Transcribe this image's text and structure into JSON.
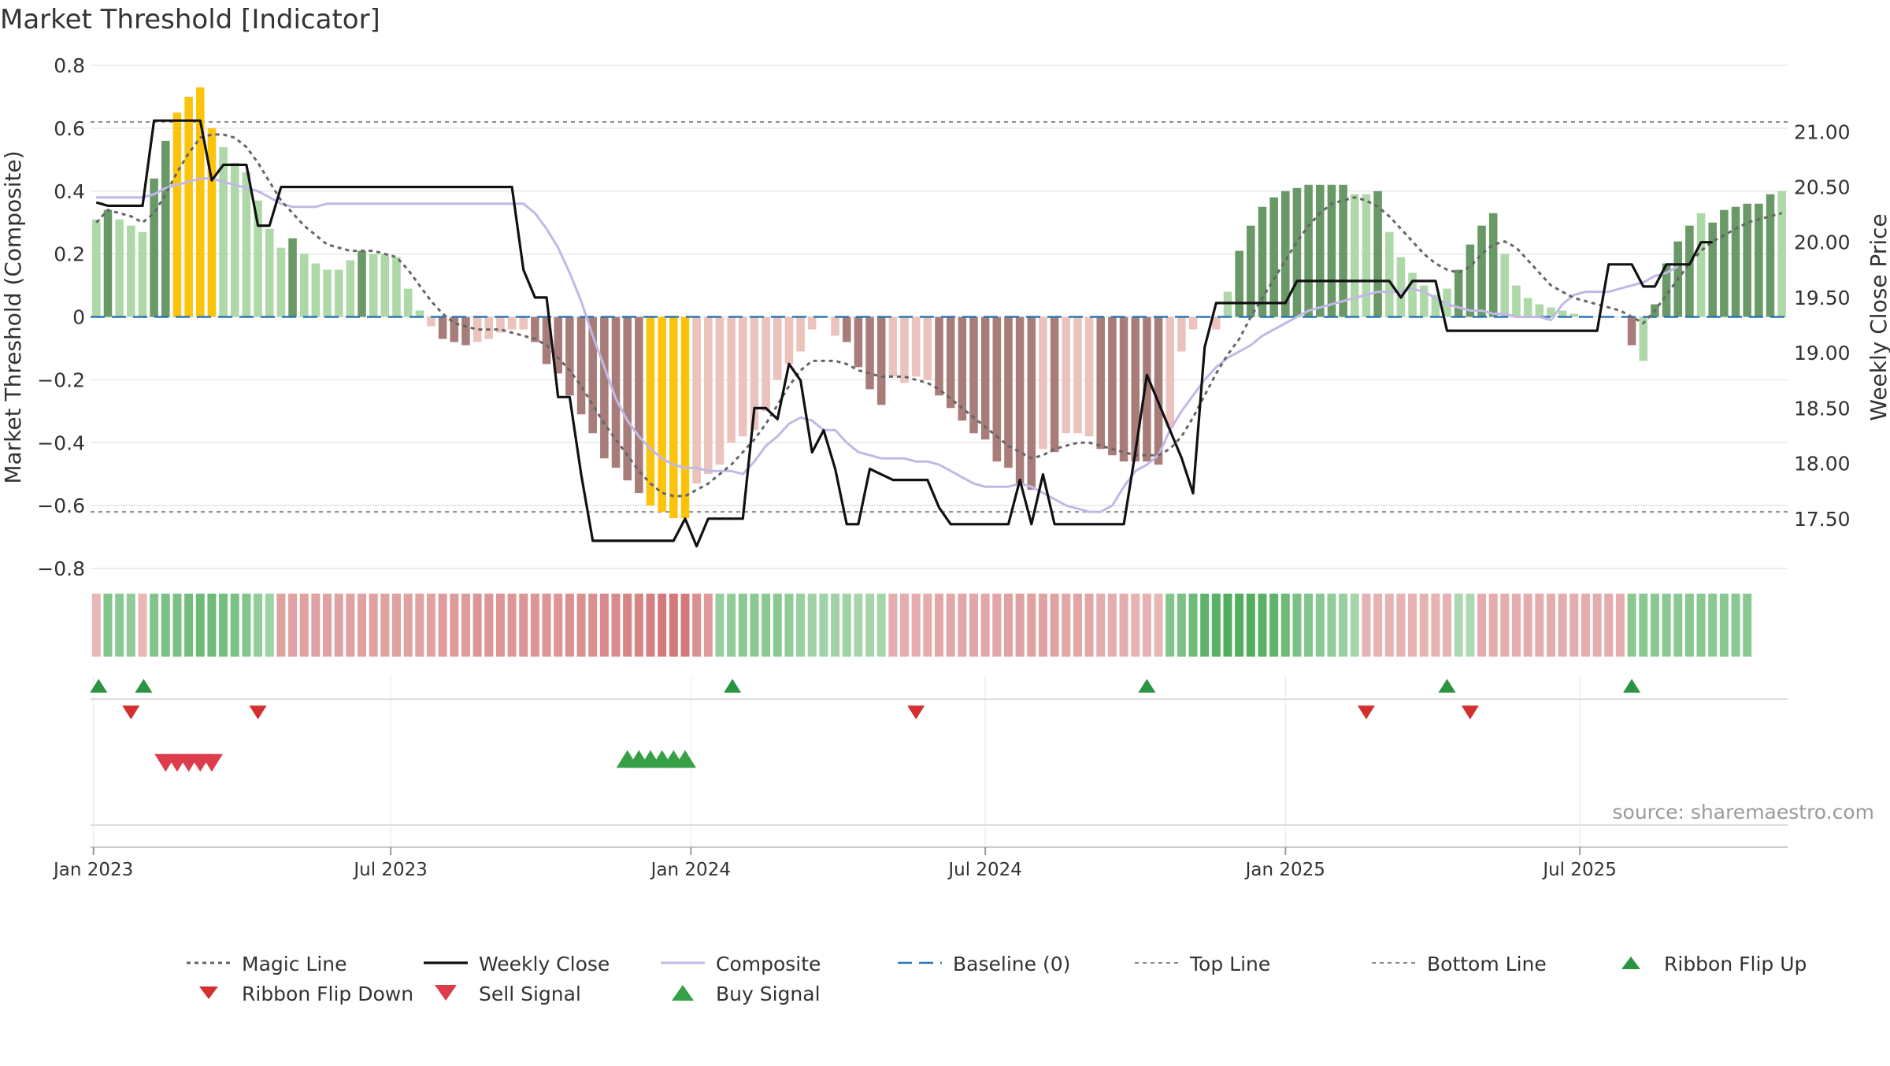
{
  "chart_data": {
    "type": "bar",
    "title": "Market Threshold [Indicator]",
    "ylabel": "Market Threshold (Composite)",
    "y2label": "Weekly Close Price",
    "source": "source: sharemaestro.com",
    "ylim": [
      -0.8,
      0.8
    ],
    "y2lim": [
      17.05,
      21.6
    ],
    "ytick_labels": [
      "0.8",
      "0.6",
      "0.4",
      "0.2",
      "0",
      "−0.2",
      "−0.4",
      "−0.6",
      "−0.8"
    ],
    "ytick_values": [
      0.8,
      0.6,
      0.4,
      0.2,
      0,
      -0.2,
      -0.4,
      -0.6,
      -0.8
    ],
    "y2tick_labels": [
      "21.00",
      "20.50",
      "20.00",
      "19.50",
      "19.00",
      "18.50",
      "18.00",
      "17.50"
    ],
    "y2tick_values": [
      21.0,
      20.5,
      20.0,
      19.5,
      19.0,
      18.5,
      18.0,
      17.5
    ],
    "xtick_labels": [
      "Jan 2023",
      "Jul 2023",
      "Jan 2024",
      "Jul 2024",
      "Jan 2025",
      "Jul 2025"
    ],
    "xtick_weeks": [
      0.25,
      26,
      52,
      77.5,
      103.5,
      129
    ],
    "top_line": 0.62,
    "bottom_line": -0.62,
    "grid": true,
    "legend_position": "bottom",
    "legend": [
      {
        "key": "magic",
        "label": "Magic Line"
      },
      {
        "key": "close",
        "label": "Weekly Close"
      },
      {
        "key": "composite",
        "label": "Composite"
      },
      {
        "key": "baseline",
        "label": "Baseline (0)"
      },
      {
        "key": "top",
        "label": "Top Line"
      },
      {
        "key": "bottom",
        "label": "Bottom Line"
      },
      {
        "key": "flipup",
        "label": "Ribbon Flip Up"
      },
      {
        "key": "flipdown",
        "label": "Ribbon Flip Down"
      },
      {
        "key": "sell",
        "label": "Sell Signal"
      },
      {
        "key": "buy",
        "label": "Buy Signal"
      }
    ],
    "colors": {
      "pos_dark": "#689966",
      "pos_light": "#aed8a8",
      "neg_dark": "#a87d79",
      "neg_light": "#ecc2bd",
      "extreme": "#fcc30c",
      "magic": "#666666",
      "close": "#111111",
      "composite": "#c2b8e6",
      "baseline": "#2c77b2",
      "thresholds": "#888888",
      "flip_up": "#2a9442",
      "flip_down": "#d32f2f",
      "sell": "#dc3c4b",
      "buy": "#36a047",
      "grid": "#e8e8e8"
    },
    "bar_values": [
      0.31,
      0.34,
      0.31,
      0.29,
      0.27,
      0.44,
      0.56,
      0.65,
      0.7,
      0.73,
      0.6,
      0.54,
      0.49,
      0.46,
      0.37,
      0.28,
      0.22,
      0.25,
      0.2,
      0.17,
      0.15,
      0.15,
      0.18,
      0.21,
      0.2,
      0.2,
      0.19,
      0.09,
      0.02,
      -0.03,
      -0.07,
      -0.08,
      -0.09,
      -0.08,
      -0.07,
      -0.05,
      -0.04,
      -0.04,
      -0.08,
      -0.15,
      -0.18,
      -0.25,
      -0.31,
      -0.37,
      -0.45,
      -0.48,
      -0.52,
      -0.56,
      -0.6,
      -0.62,
      -0.64,
      -0.64,
      -0.53,
      -0.5,
      -0.47,
      -0.4,
      -0.38,
      -0.36,
      -0.3,
      -0.2,
      -0.15,
      -0.11,
      -0.04,
      0,
      -0.06,
      -0.08,
      -0.16,
      -0.23,
      -0.28,
      -0.19,
      -0.21,
      -0.19,
      -0.2,
      -0.25,
      -0.29,
      -0.33,
      -0.37,
      -0.39,
      -0.46,
      -0.48,
      -0.53,
      -0.55,
      -0.42,
      -0.43,
      -0.37,
      -0.37,
      -0.38,
      -0.42,
      -0.44,
      -0.46,
      -0.46,
      -0.46,
      -0.47,
      -0.35,
      -0.11,
      -0.04,
      0,
      -0.04,
      0.08,
      0.21,
      0.29,
      0.35,
      0.38,
      0.4,
      0.41,
      0.42,
      0.42,
      0.42,
      0.42,
      0.39,
      0.39,
      0.4,
      0.27,
      0.19,
      0.14,
      0.1,
      0.07,
      0.09,
      0.15,
      0.23,
      0.29,
      0.33,
      0.2,
      0.1,
      0.06,
      0.04,
      0.03,
      0.02,
      0.01,
      0.0,
      0.0,
      0.0,
      0.0,
      -0.09,
      -0.14,
      0.04,
      0.17,
      0.24,
      0.29,
      0.33,
      0.3,
      0.34,
      0.35,
      0.36,
      0.36,
      0.39,
      0.4
    ],
    "bar_style": [
      "pl",
      "pd",
      "pl",
      "pl",
      "pl",
      "pd",
      "pd",
      "ex",
      "ex",
      "ex",
      "ex",
      "pl",
      "pl",
      "pl",
      "pl",
      "pl",
      "pl",
      "pd",
      "pl",
      "pl",
      "pl",
      "pl",
      "pl",
      "pd",
      "pl",
      "pl",
      "pl",
      "pl",
      "pl",
      "nl",
      "nd",
      "nd",
      "nd",
      "nl",
      "nl",
      "nl",
      "nl",
      "nl",
      "nd",
      "nd",
      "nd",
      "nd",
      "nd",
      "nd",
      "nd",
      "nd",
      "nd",
      "nd",
      "ex",
      "ex",
      "ex",
      "ex",
      "nl",
      "nl",
      "nl",
      "nl",
      "nl",
      "nl",
      "nl",
      "nl",
      "nl",
      "nl",
      "nl",
      "nl",
      "nl",
      "nd",
      "nd",
      "nd",
      "nd",
      "nl",
      "nl",
      "nl",
      "nl",
      "nd",
      "nd",
      "nd",
      "nd",
      "nd",
      "nd",
      "nd",
      "nd",
      "nd",
      "nl",
      "nd",
      "nl",
      "nl",
      "nl",
      "nd",
      "nd",
      "nd",
      "nd",
      "nd",
      "nd",
      "nl",
      "nl",
      "nl",
      "nl",
      "nl",
      "pl",
      "pd",
      "pd",
      "pd",
      "pd",
      "pd",
      "pd",
      "pd",
      "pd",
      "pd",
      "pd",
      "pl",
      "pl",
      "pd",
      "pl",
      "pl",
      "pl",
      "pl",
      "pl",
      "pl",
      "pd",
      "pd",
      "pd",
      "pd",
      "pl",
      "pl",
      "pl",
      "pl",
      "pl",
      "pl",
      "pl",
      "pl",
      "pl",
      "pl",
      "nl",
      "nd",
      "pl",
      "pd",
      "pd",
      "pd",
      "pd",
      "pl",
      "pd",
      "pd",
      "pd",
      "pd",
      "pd",
      "pd"
    ],
    "magic_line": [
      0.3,
      0.34,
      0.33,
      0.32,
      0.3,
      0.33,
      0.39,
      0.46,
      0.52,
      0.57,
      0.58,
      0.58,
      0.57,
      0.54,
      0.49,
      0.43,
      0.37,
      0.33,
      0.29,
      0.26,
      0.23,
      0.22,
      0.21,
      0.21,
      0.21,
      0.2,
      0.19,
      0.15,
      0.1,
      0.05,
      0.01,
      -0.02,
      -0.03,
      -0.04,
      -0.04,
      -0.04,
      -0.05,
      -0.06,
      -0.07,
      -0.09,
      -0.13,
      -0.17,
      -0.22,
      -0.28,
      -0.34,
      -0.39,
      -0.44,
      -0.49,
      -0.53,
      -0.56,
      -0.57,
      -0.57,
      -0.55,
      -0.53,
      -0.5,
      -0.47,
      -0.43,
      -0.39,
      -0.34,
      -0.28,
      -0.22,
      -0.17,
      -0.14,
      -0.14,
      -0.14,
      -0.15,
      -0.17,
      -0.18,
      -0.19,
      -0.19,
      -0.19,
      -0.2,
      -0.21,
      -0.23,
      -0.26,
      -0.29,
      -0.32,
      -0.35,
      -0.38,
      -0.41,
      -0.43,
      -0.45,
      -0.44,
      -0.42,
      -0.41,
      -0.4,
      -0.4,
      -0.41,
      -0.42,
      -0.43,
      -0.44,
      -0.44,
      -0.44,
      -0.42,
      -0.38,
      -0.32,
      -0.25,
      -0.18,
      -0.12,
      -0.07,
      0,
      0.06,
      0.12,
      0.18,
      0.24,
      0.29,
      0.33,
      0.36,
      0.37,
      0.38,
      0.37,
      0.35,
      0.32,
      0.28,
      0.24,
      0.2,
      0.17,
      0.15,
      0.14,
      0.16,
      0.2,
      0.23,
      0.24,
      0.22,
      0.18,
      0.14,
      0.1,
      0.08,
      0.06,
      0.05,
      0.04,
      0.03,
      0.02,
      0.0,
      -0.02,
      0.02,
      0.07,
      0.12,
      0.17,
      0.21,
      0.24,
      0.26,
      0.28,
      0.3,
      0.31,
      0.32,
      0.33
    ],
    "composite_line": [
      0.38,
      0.38,
      0.38,
      0.38,
      0.38,
      0.39,
      0.41,
      0.42,
      0.43,
      0.44,
      0.44,
      0.43,
      0.42,
      0.41,
      0.4,
      0.38,
      0.36,
      0.35,
      0.35,
      0.35,
      0.36,
      0.36,
      0.36,
      0.36,
      0.36,
      0.36,
      0.36,
      0.36,
      0.36,
      0.36,
      0.36,
      0.36,
      0.36,
      0.36,
      0.36,
      0.36,
      0.36,
      0.36,
      0.33,
      0.28,
      0.22,
      0.14,
      0.05,
      -0.06,
      -0.16,
      -0.26,
      -0.33,
      -0.38,
      -0.42,
      -0.45,
      -0.47,
      -0.48,
      -0.48,
      -0.49,
      -0.49,
      -0.49,
      -0.5,
      -0.46,
      -0.41,
      -0.38,
      -0.34,
      -0.32,
      -0.33,
      -0.36,
      -0.36,
      -0.4,
      -0.43,
      -0.44,
      -0.45,
      -0.45,
      -0.45,
      -0.46,
      -0.46,
      -0.47,
      -0.49,
      -0.51,
      -0.53,
      -0.54,
      -0.54,
      -0.54,
      -0.53,
      -0.54,
      -0.56,
      -0.58,
      -0.6,
      -0.61,
      -0.62,
      -0.62,
      -0.6,
      -0.54,
      -0.49,
      -0.47,
      -0.44,
      -0.36,
      -0.3,
      -0.25,
      -0.2,
      -0.16,
      -0.13,
      -0.11,
      -0.09,
      -0.06,
      -0.04,
      -0.02,
      0,
      0.02,
      0.03,
      0.04,
      0.05,
      0.06,
      0.07,
      0.08,
      0.08,
      0.08,
      0.09,
      0.08,
      0.06,
      0.04,
      0.03,
      0.02,
      0.02,
      0.01,
      0.01,
      0.0,
      0.0,
      0.0,
      -0.01,
      0.04,
      0.07,
      0.08,
      0.08,
      0.08,
      0.09,
      0.1,
      0.11,
      0.13,
      0.14,
      0.16
    ],
    "weekly_close": [
      20.36,
      20.33,
      20.33,
      20.33,
      20.33,
      21.1,
      21.1,
      21.1,
      21.1,
      21.1,
      20.56,
      20.7,
      20.7,
      20.7,
      20.15,
      20.15,
      20.5,
      20.5,
      20.5,
      20.5,
      20.5,
      20.5,
      20.5,
      20.5,
      20.5,
      20.5,
      20.5,
      20.5,
      20.5,
      20.5,
      20.5,
      20.5,
      20.5,
      20.5,
      20.5,
      20.5,
      20.5,
      19.75,
      19.5,
      19.5,
      18.6,
      18.6,
      17.9,
      17.3,
      17.3,
      17.3,
      17.3,
      17.3,
      17.3,
      17.3,
      17.3,
      17.5,
      17.25,
      17.5,
      17.5,
      17.5,
      17.5,
      18.5,
      18.5,
      18.4,
      18.9,
      18.75,
      18.1,
      18.3,
      17.95,
      17.45,
      17.45,
      17.95,
      17.9,
      17.85,
      17.85,
      17.85,
      17.85,
      17.6,
      17.45,
      17.45,
      17.45,
      17.45,
      17.45,
      17.45,
      17.85,
      17.45,
      17.9,
      17.45,
      17.45,
      17.45,
      17.45,
      17.45,
      17.45,
      17.45,
      18.1,
      18.8,
      18.55,
      18.3,
      18.05,
      17.73,
      19.05,
      19.45,
      19.45,
      19.45,
      19.45,
      19.45,
      19.45,
      19.45,
      19.65,
      19.65,
      19.65,
      19.65,
      19.65,
      19.65,
      19.65,
      19.65,
      19.65,
      19.5,
      19.65,
      19.65,
      19.65,
      19.2,
      19.2,
      19.2,
      19.2,
      19.2,
      19.2,
      19.2,
      19.2,
      19.2,
      19.2,
      19.2,
      19.2,
      19.2,
      19.2,
      19.8,
      19.8,
      19.8,
      19.6,
      19.6,
      19.8,
      19.8,
      19.8,
      20.0,
      20.0
    ],
    "ribbon": [
      -0.3,
      0.55,
      0.5,
      0.45,
      -0.3,
      0.55,
      0.6,
      0.6,
      0.65,
      0.7,
      0.7,
      0.65,
      0.6,
      0.55,
      0.45,
      0.35,
      -0.5,
      -0.5,
      -0.5,
      -0.5,
      -0.5,
      -0.5,
      -0.5,
      -0.5,
      -0.5,
      -0.5,
      -0.5,
      -0.5,
      -0.5,
      -0.5,
      -0.55,
      -0.55,
      -0.55,
      -0.6,
      -0.6,
      -0.6,
      -0.6,
      -0.6,
      -0.6,
      -0.6,
      -0.6,
      -0.65,
      -0.65,
      -0.65,
      -0.7,
      -0.7,
      -0.75,
      -0.75,
      -0.8,
      -0.85,
      -0.85,
      -0.85,
      -0.65,
      -0.55,
      0.4,
      0.45,
      0.5,
      0.5,
      0.5,
      0.5,
      0.45,
      0.4,
      0.35,
      0.35,
      0.35,
      0.35,
      0.3,
      0.3,
      0.3,
      -0.4,
      -0.4,
      -0.4,
      -0.4,
      -0.45,
      -0.45,
      -0.45,
      -0.45,
      -0.45,
      -0.45,
      -0.5,
      -0.5,
      -0.5,
      -0.5,
      -0.5,
      -0.45,
      -0.45,
      -0.45,
      -0.4,
      -0.4,
      -0.4,
      -0.35,
      -0.35,
      -0.3,
      0.55,
      0.6,
      0.7,
      0.8,
      0.85,
      0.9,
      0.9,
      0.9,
      0.85,
      0.8,
      0.7,
      0.6,
      0.55,
      0.5,
      0.45,
      0.4,
      0.3,
      -0.35,
      -0.35,
      -0.35,
      -0.35,
      -0.35,
      -0.35,
      -0.35,
      -0.35,
      0.25,
      0.25,
      -0.4,
      -0.4,
      -0.4,
      -0.4,
      -0.4,
      -0.4,
      -0.4,
      -0.4,
      -0.4,
      -0.4,
      -0.4,
      -0.4,
      -0.4,
      0.5,
      0.5,
      0.5,
      0.5,
      0.5,
      0.5,
      0.5,
      0.5,
      0.5,
      0.5,
      0.5
    ],
    "ribbon_flip_up_weeks": [
      0.2,
      4.1,
      55.1,
      91.0,
      117.0,
      133.0
    ],
    "ribbon_flip_down_weeks": [
      3.0,
      14.0,
      71.0,
      110.0,
      119.0
    ],
    "sell_signal_weeks": [
      6.0,
      7.0,
      8.0,
      9.0,
      10.0
    ],
    "buy_signal_weeks": [
      46.0,
      47.0,
      48.0,
      49.0,
      50.0,
      51.0
    ]
  }
}
